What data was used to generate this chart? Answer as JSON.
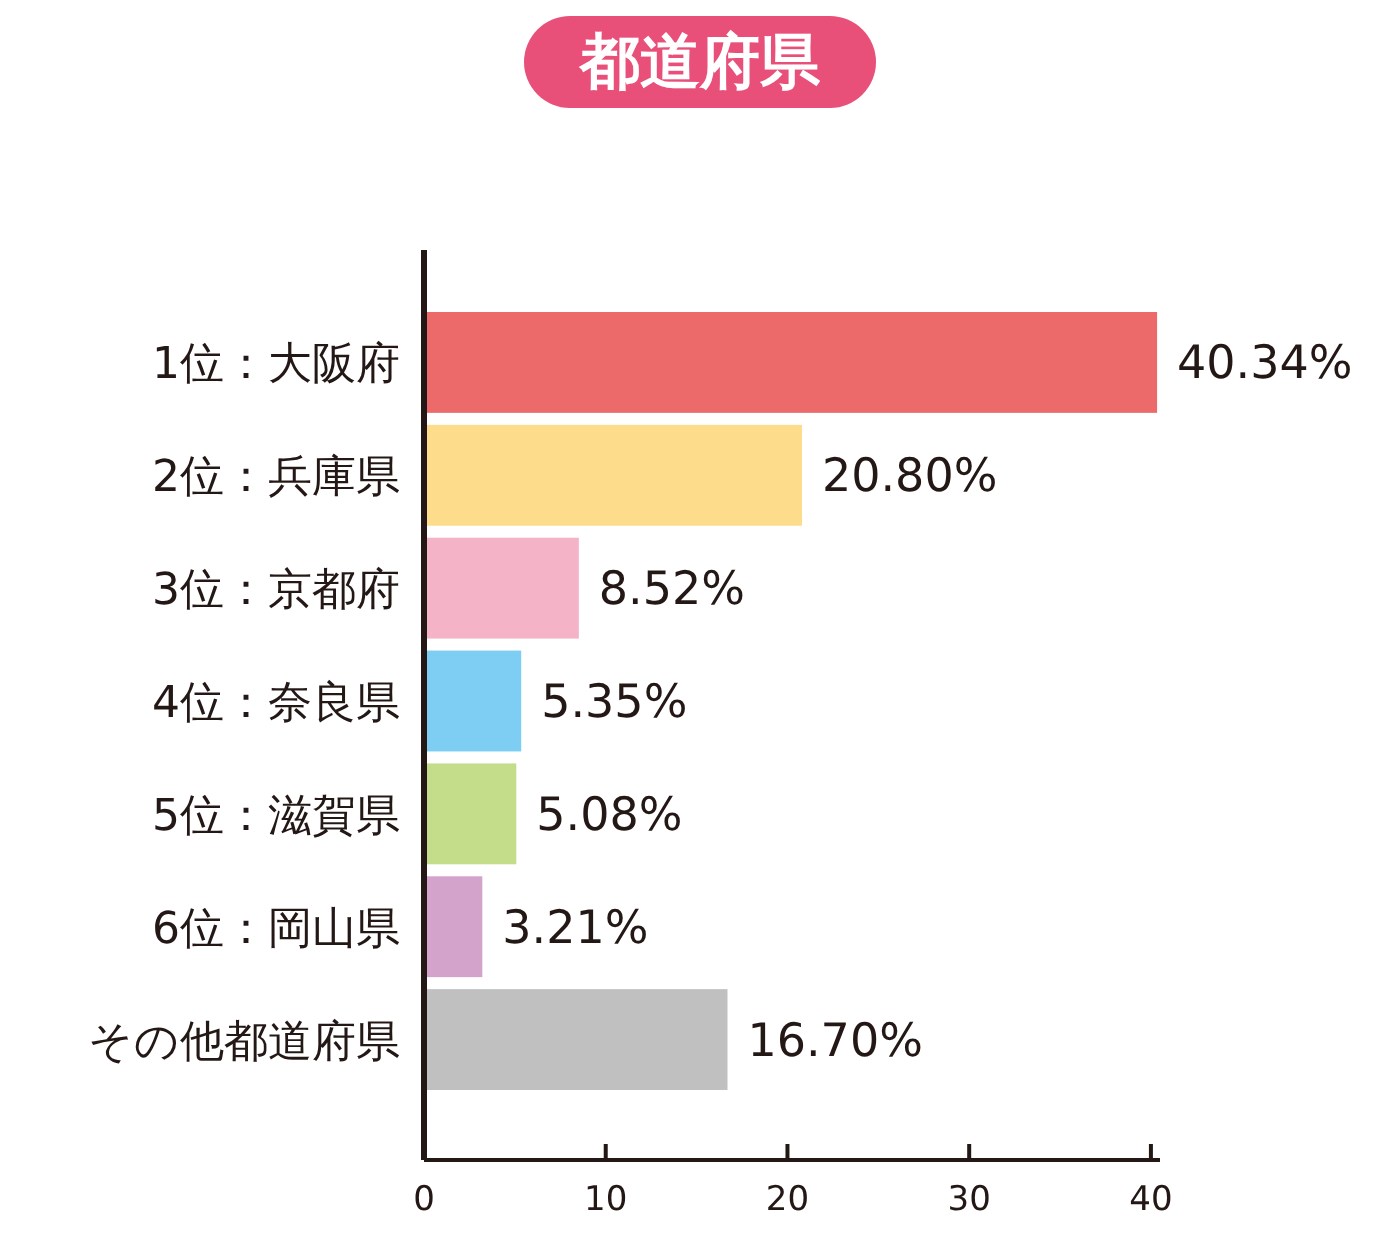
{
  "chart_data": {
    "type": "bar",
    "orientation": "horizontal",
    "title": "都道府県",
    "categories": [
      "1位：大阪府",
      "2位：兵庫県",
      "3位：京都府",
      "4位：奈良県",
      "5位：滋賀県",
      "6位：岡山県",
      "その他都道府県"
    ],
    "values": [
      40.34,
      20.8,
      8.52,
      5.35,
      5.08,
      3.21,
      16.7
    ],
    "value_labels": [
      "40.34%",
      "20.80%",
      "8.52%",
      "5.35%",
      "5.08%",
      "3.21%",
      "16.70%"
    ],
    "colors": [
      "#ec6a6a",
      "#fddc8c",
      "#f5b3c8",
      "#7ecef3",
      "#c3dd8a",
      "#d4a3cc",
      "#c0c0c0"
    ],
    "xlim": [
      0,
      40.5
    ],
    "xticks": [
      0,
      10,
      20,
      30,
      40
    ],
    "grid": false
  }
}
